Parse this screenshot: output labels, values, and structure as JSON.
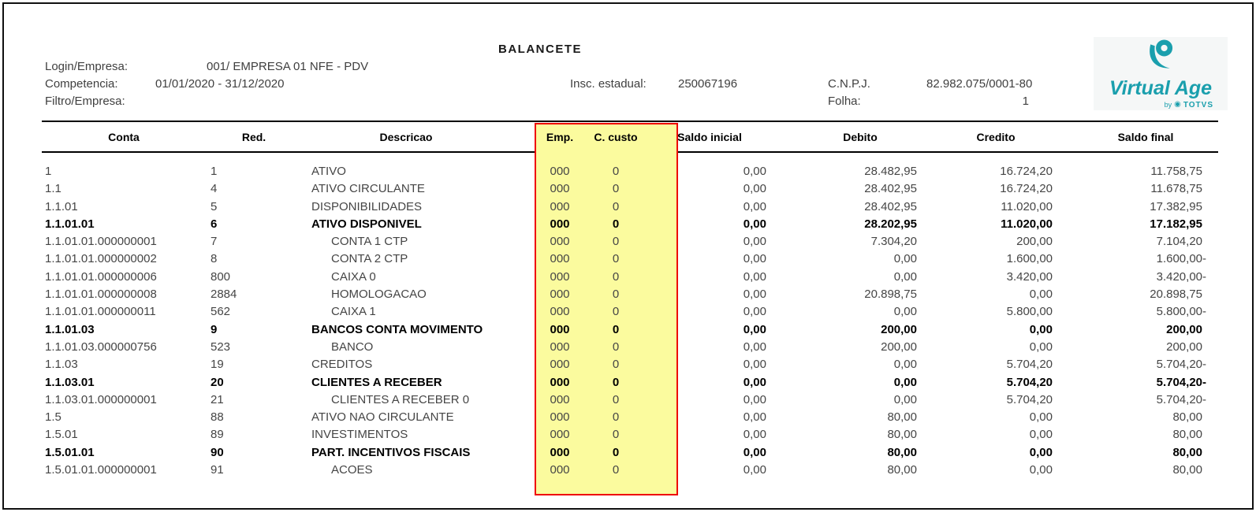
{
  "report": {
    "title": "BALANCETE",
    "header": {
      "login_label": "Login/Empresa:",
      "login_value": "001/  EMPRESA 01 NFE - PDV",
      "competencia_label": "Competencia:",
      "competencia_value": "01/01/2020  -  31/12/2020",
      "filtro_label": "Filtro/Empresa:",
      "insc_label": "Insc. estadual:",
      "insc_value": "250067196",
      "cnpj_label": "C.N.P.J.",
      "cnpj_value": "82.982.075/0001-80",
      "folha_label": "Folha:",
      "folha_value": "1"
    },
    "logo": {
      "name": "Virtual Age",
      "byline": "by",
      "brand": "TOTVS",
      "accent_color": "#1a9fad"
    },
    "table": {
      "columns": [
        "Conta",
        "Red.",
        "Descricao",
        "Emp.",
        "C. custo",
        "Saldo inicial",
        "Debito",
        "Credito",
        "Saldo final"
      ],
      "highlight": {
        "fill": "#fbfb9e",
        "border": "#ee0000"
      },
      "rows": [
        {
          "conta": "1",
          "red": "1",
          "desc": "ATIVO",
          "indent": false,
          "bold": false,
          "emp": "000",
          "ccusto": "0",
          "saldo_inicial": "0,00",
          "debito": "28.482,95",
          "credito": "16.724,20",
          "saldo_final": "11.758,75"
        },
        {
          "conta": "1.1",
          "red": "4",
          "desc": "ATIVO CIRCULANTE",
          "indent": false,
          "bold": false,
          "emp": "000",
          "ccusto": "0",
          "saldo_inicial": "0,00",
          "debito": "28.402,95",
          "credito": "16.724,20",
          "saldo_final": "11.678,75"
        },
        {
          "conta": "1.1.01",
          "red": "5",
          "desc": "DISPONIBILIDADES",
          "indent": false,
          "bold": false,
          "emp": "000",
          "ccusto": "0",
          "saldo_inicial": "0,00",
          "debito": "28.402,95",
          "credito": "11.020,00",
          "saldo_final": "17.382,95"
        },
        {
          "conta": "1.1.01.01",
          "red": "6",
          "desc": "ATIVO DISPONIVEL",
          "indent": false,
          "bold": true,
          "emp": "000",
          "ccusto": "0",
          "saldo_inicial": "0,00",
          "debito": "28.202,95",
          "credito": "11.020,00",
          "saldo_final": "17.182,95"
        },
        {
          "conta": "1.1.01.01.000000001",
          "red": "7",
          "desc": "CONTA 1 CTP",
          "indent": true,
          "bold": false,
          "emp": "000",
          "ccusto": "0",
          "saldo_inicial": "0,00",
          "debito": "7.304,20",
          "credito": "200,00",
          "saldo_final": "7.104,20"
        },
        {
          "conta": "1.1.01.01.000000002",
          "red": "8",
          "desc": "CONTA 2 CTP",
          "indent": true,
          "bold": false,
          "emp": "000",
          "ccusto": "0",
          "saldo_inicial": "0,00",
          "debito": "0,00",
          "credito": "1.600,00",
          "saldo_final": "1.600,00-"
        },
        {
          "conta": "1.1.01.01.000000006",
          "red": "800",
          "desc": "CAIXA 0",
          "indent": true,
          "bold": false,
          "emp": "000",
          "ccusto": "0",
          "saldo_inicial": "0,00",
          "debito": "0,00",
          "credito": "3.420,00",
          "saldo_final": "3.420,00-"
        },
        {
          "conta": "1.1.01.01.000000008",
          "red": "2884",
          "desc": "HOMOLOGACAO",
          "indent": true,
          "bold": false,
          "emp": "000",
          "ccusto": "0",
          "saldo_inicial": "0,00",
          "debito": "20.898,75",
          "credito": "0,00",
          "saldo_final": "20.898,75"
        },
        {
          "conta": "1.1.01.01.000000011",
          "red": "562",
          "desc": "CAIXA 1",
          "indent": true,
          "bold": false,
          "emp": "000",
          "ccusto": "0",
          "saldo_inicial": "0,00",
          "debito": "0,00",
          "credito": "5.800,00",
          "saldo_final": "5.800,00-"
        },
        {
          "conta": "1.1.01.03",
          "red": "9",
          "desc": "BANCOS CONTA MOVIMENTO",
          "indent": false,
          "bold": true,
          "emp": "000",
          "ccusto": "0",
          "saldo_inicial": "0,00",
          "debito": "200,00",
          "credito": "0,00",
          "saldo_final": "200,00"
        },
        {
          "conta": "1.1.01.03.000000756",
          "red": "523",
          "desc": "BANCO",
          "indent": true,
          "bold": false,
          "emp": "000",
          "ccusto": "0",
          "saldo_inicial": "0,00",
          "debito": "200,00",
          "credito": "0,00",
          "saldo_final": "200,00"
        },
        {
          "conta": "1.1.03",
          "red": "19",
          "desc": "CREDITOS",
          "indent": false,
          "bold": false,
          "emp": "000",
          "ccusto": "0",
          "saldo_inicial": "0,00",
          "debito": "0,00",
          "credito": "5.704,20",
          "saldo_final": "5.704,20-"
        },
        {
          "conta": "1.1.03.01",
          "red": "20",
          "desc": "CLIENTES A RECEBER",
          "indent": false,
          "bold": true,
          "emp": "000",
          "ccusto": "0",
          "saldo_inicial": "0,00",
          "debito": "0,00",
          "credito": "5.704,20",
          "saldo_final": "5.704,20-"
        },
        {
          "conta": "1.1.03.01.000000001",
          "red": "21",
          "desc": "CLIENTES A RECEBER 0",
          "indent": true,
          "bold": false,
          "emp": "000",
          "ccusto": "0",
          "saldo_inicial": "0,00",
          "debito": "0,00",
          "credito": "5.704,20",
          "saldo_final": "5.704,20-"
        },
        {
          "conta": "1.5",
          "red": "88",
          "desc": "ATIVO NAO CIRCULANTE",
          "indent": false,
          "bold": false,
          "emp": "000",
          "ccusto": "0",
          "saldo_inicial": "0,00",
          "debito": "80,00",
          "credito": "0,00",
          "saldo_final": "80,00"
        },
        {
          "conta": "1.5.01",
          "red": "89",
          "desc": "INVESTIMENTOS",
          "indent": false,
          "bold": false,
          "emp": "000",
          "ccusto": "0",
          "saldo_inicial": "0,00",
          "debito": "80,00",
          "credito": "0,00",
          "saldo_final": "80,00"
        },
        {
          "conta": "1.5.01.01",
          "red": "90",
          "desc": "PART. INCENTIVOS FISCAIS",
          "indent": false,
          "bold": true,
          "emp": "000",
          "ccusto": "0",
          "saldo_inicial": "0,00",
          "debito": "80,00",
          "credito": "0,00",
          "saldo_final": "80,00"
        },
        {
          "conta": "1.5.01.01.000000001",
          "red": "91",
          "desc": "ACOES",
          "indent": true,
          "bold": false,
          "emp": "000",
          "ccusto": "0",
          "saldo_inicial": "0,00",
          "debito": "80,00",
          "credito": "0,00",
          "saldo_final": "80,00"
        }
      ]
    }
  }
}
